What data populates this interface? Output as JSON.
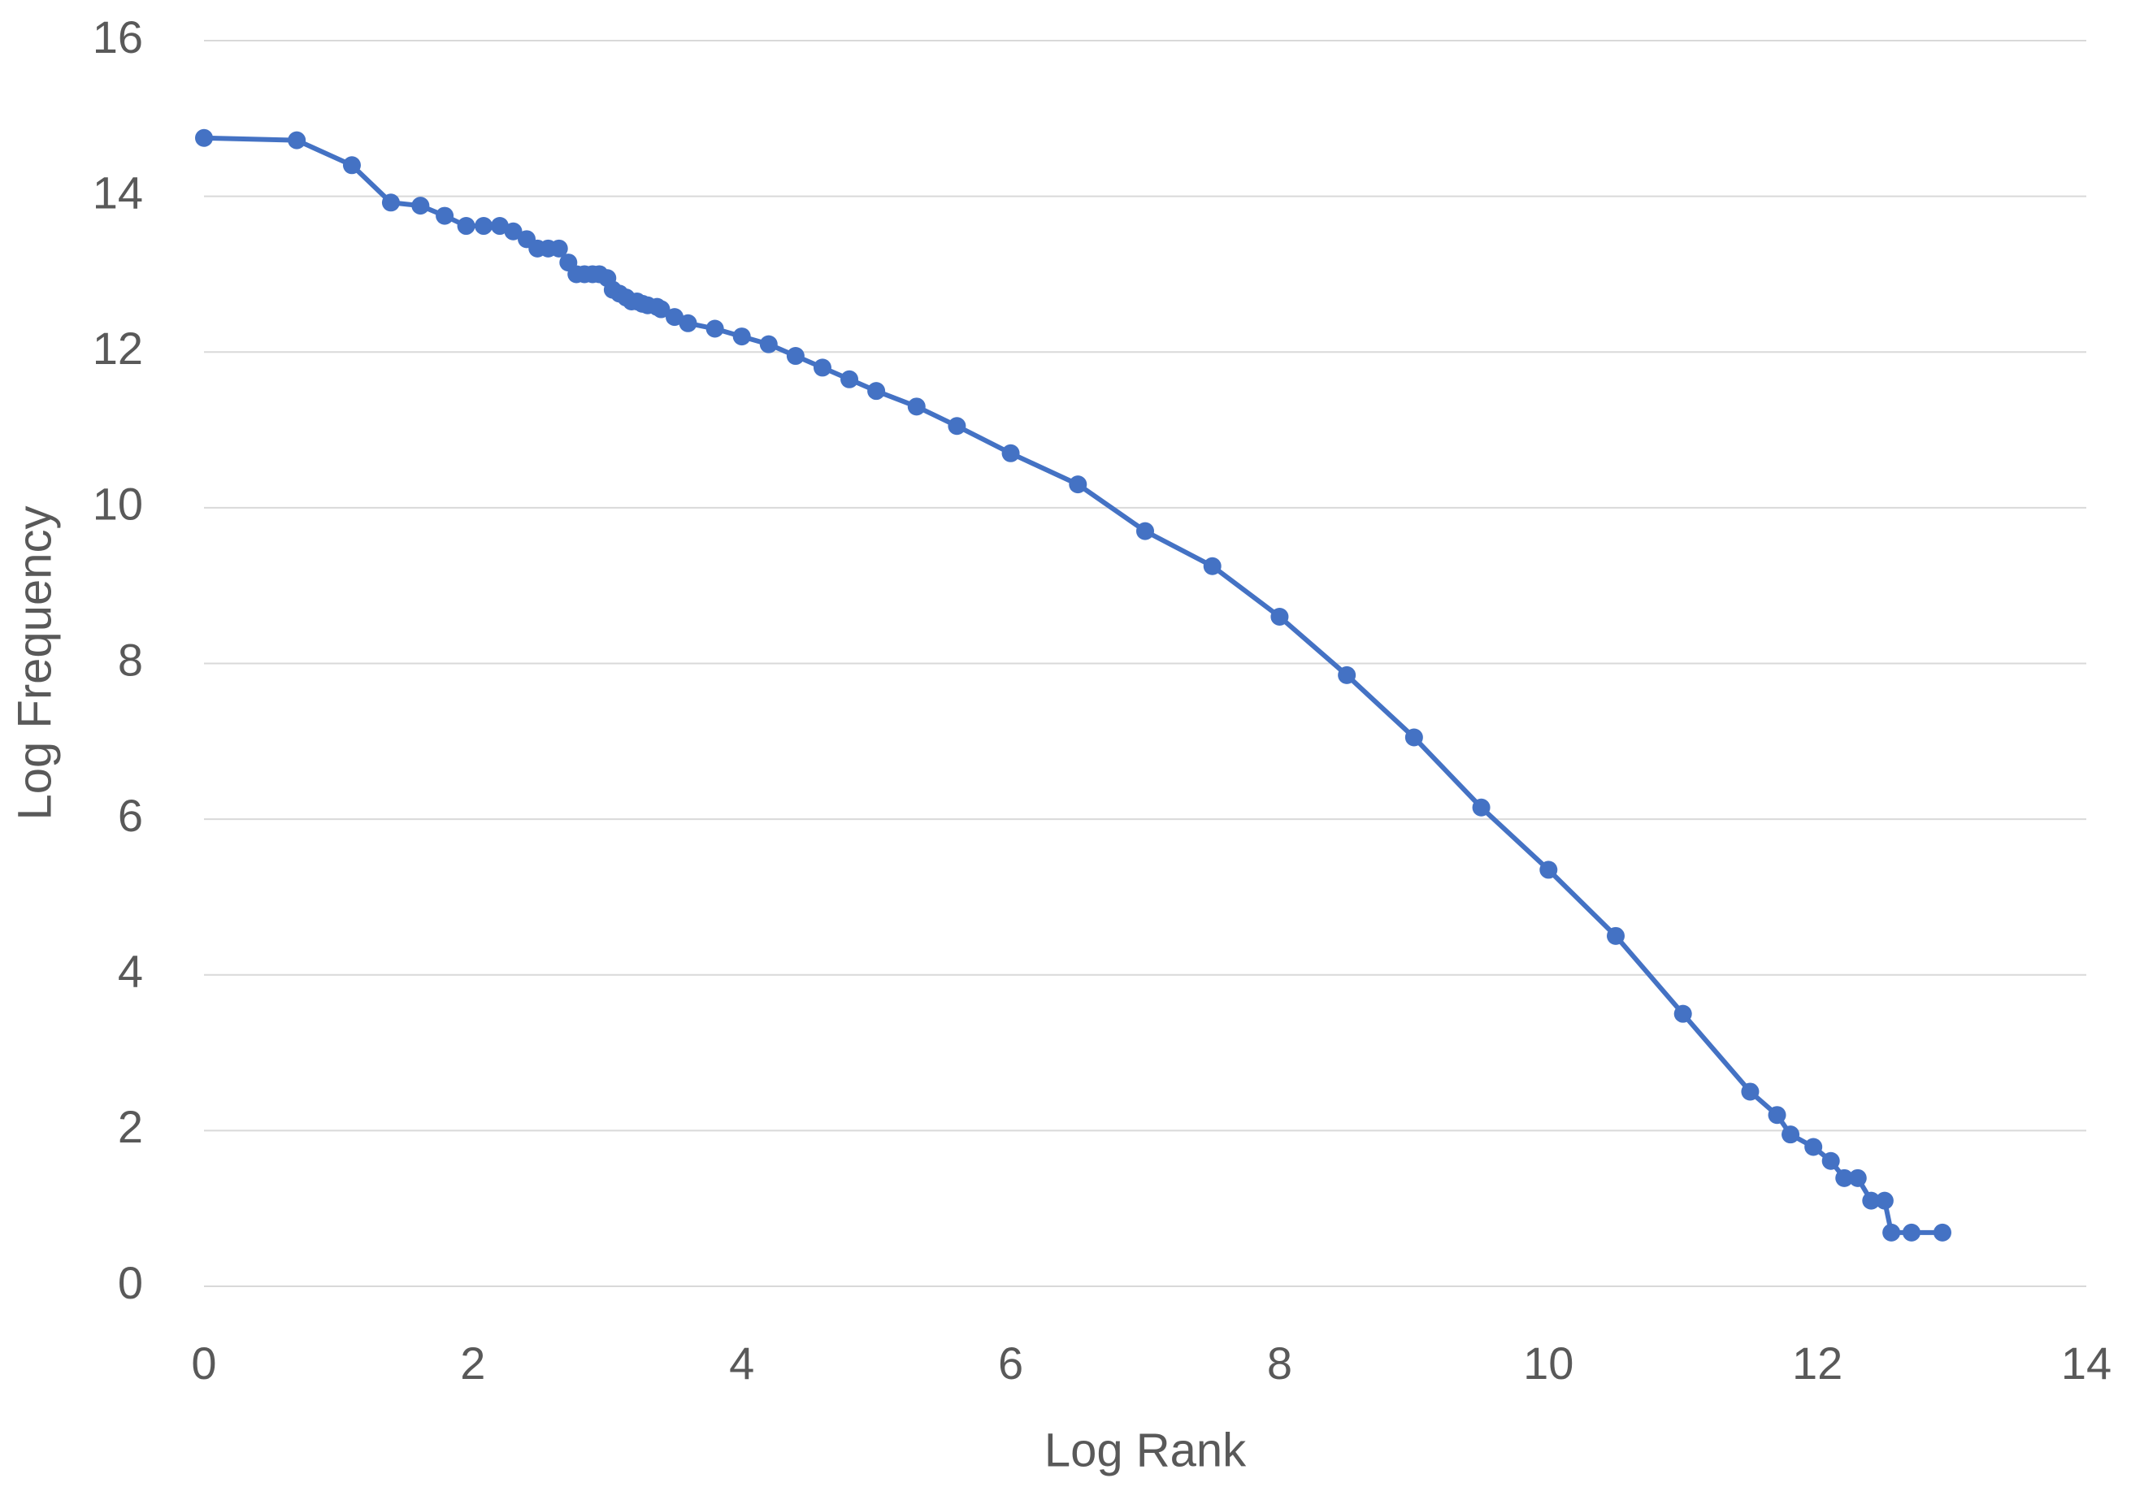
{
  "chart_data": {
    "type": "scatter",
    "x_label": "Log Rank",
    "y_label": "Log Frequency",
    "x": [
      0,
      0.69,
      1.1,
      1.39,
      1.61,
      1.79,
      1.95,
      2.08,
      2.2,
      2.3,
      2.4,
      2.48,
      2.56,
      2.64,
      2.71,
      2.77,
      2.83,
      2.89,
      2.94,
      3.0,
      3.04,
      3.09,
      3.14,
      3.18,
      3.22,
      3.26,
      3.3,
      3.37,
      3.4,
      3.5,
      3.6,
      3.8,
      4.0,
      4.2,
      4.4,
      4.6,
      4.8,
      5.0,
      5.3,
      5.6,
      6.0,
      6.5,
      7.0,
      7.5,
      8.0,
      8.5,
      9.0,
      9.5,
      10.0,
      10.5,
      11.0,
      11.5,
      11.7,
      11.8,
      11.97,
      12.1,
      12.2,
      12.3,
      12.4,
      12.5,
      12.55,
      12.7,
      12.93
    ],
    "values": [
      14.75,
      14.72,
      14.4,
      13.92,
      13.88,
      13.75,
      13.62,
      13.62,
      13.62,
      13.55,
      13.45,
      13.33,
      13.33,
      13.33,
      13.15,
      13.0,
      13.0,
      13.0,
      13.0,
      12.95,
      12.8,
      12.75,
      12.7,
      12.65,
      12.65,
      12.62,
      12.6,
      12.58,
      12.55,
      12.45,
      12.37,
      12.3,
      12.2,
      12.1,
      11.95,
      11.8,
      11.65,
      11.5,
      11.3,
      11.05,
      10.7,
      10.3,
      9.7,
      9.25,
      8.6,
      7.85,
      7.05,
      6.15,
      5.35,
      4.5,
      3.5,
      2.5,
      2.2,
      1.95,
      1.79,
      1.61,
      1.39,
      1.39,
      1.1,
      1.1,
      0.69,
      0.69,
      0.69
    ],
    "color": "#4472c4",
    "xlim": [
      0,
      14
    ],
    "xticks": [
      0,
      2,
      4,
      6,
      8,
      10,
      12,
      14
    ],
    "ylim": [
      0,
      16
    ],
    "yticks": [
      0,
      2,
      4,
      6,
      8,
      10,
      12,
      14,
      16
    ],
    "grid": true
  }
}
